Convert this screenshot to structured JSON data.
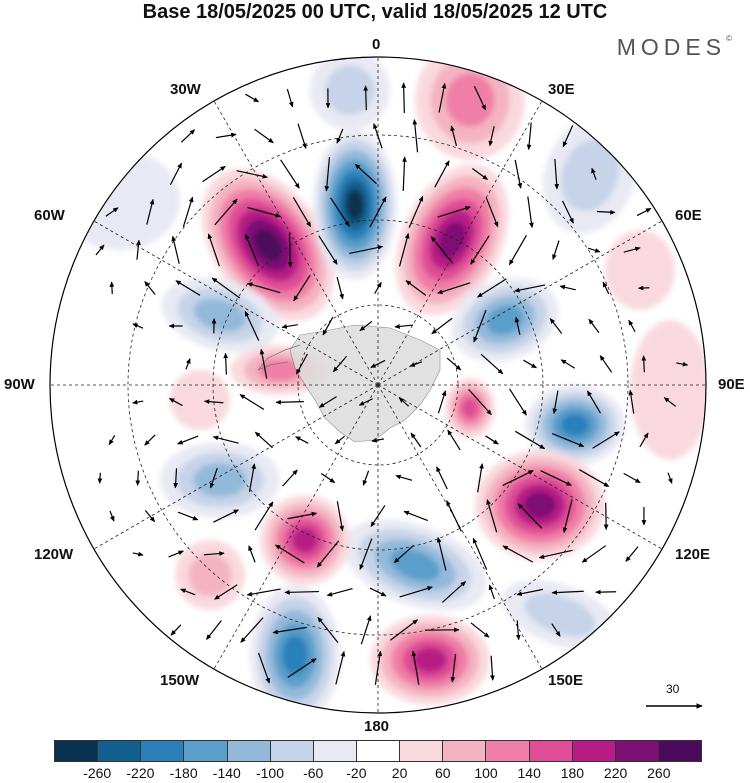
{
  "title": "Base 18/05/2025 00 UTC, valid 18/05/2025 12 UTC",
  "brand": "MODES",
  "brand_mark": "©",
  "map": {
    "projection": "south-polar-stereographic",
    "longitude_labels": {
      "top": "0",
      "top_right": "30E",
      "right_upper": "60E",
      "right": "90E",
      "right_lower": "120E",
      "bottom_right": "150E",
      "bottom": "180",
      "bottom_left": "150W",
      "left_lower": "120W",
      "left": "90W",
      "left_upper": "60W",
      "top_left": "30W"
    },
    "grid": "dashed meridians every 30 degrees, dashed latitude circles",
    "vectors": "black wind arrows",
    "reference_vector": {
      "value": "30"
    }
  },
  "colorbar": {
    "ticks": [
      "-260",
      "-220",
      "-180",
      "-140",
      "-100",
      "-60",
      "-20",
      "20",
      "60",
      "100",
      "140",
      "180",
      "220",
      "260"
    ],
    "colors": [
      "#08304f",
      "#135f8d",
      "#2b80b9",
      "#5a9ecb",
      "#93b9da",
      "#c6d3e8",
      "#e8e9f3",
      "#ffffff",
      "#f9d9df",
      "#f4b3c2",
      "#ef7fa6",
      "#df4d96",
      "#b71b85",
      "#7e0f74",
      "#4b0a5b"
    ]
  }
}
